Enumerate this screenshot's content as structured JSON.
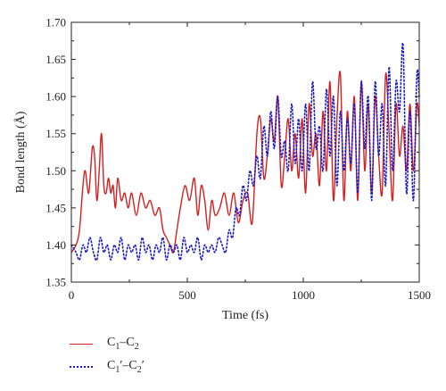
{
  "chart_data": {
    "type": "line",
    "xlabel": "Time (fs)",
    "ylabel": "Bond length (Å)",
    "xlim": [
      0,
      1500
    ],
    "ylim": [
      1.35,
      1.7
    ],
    "xticks": [
      0,
      500,
      1000,
      1500
    ],
    "yticks": [
      1.35,
      1.4,
      1.45,
      1.5,
      1.55,
      1.6,
      1.65,
      1.7
    ],
    "xtick_labels": [
      "0",
      "500",
      "1000",
      "1500"
    ],
    "ytick_labels": [
      "1.35",
      "1.40",
      "1.45",
      "1.50",
      "1.55",
      "1.60",
      "1.65",
      "1.70"
    ],
    "legend_position": "bottom-left, below plot",
    "series": [
      {
        "name": "C1–C2",
        "label_main": [
          "C",
          "–C",
          ""
        ],
        "label_subs": [
          "1",
          "2"
        ],
        "color": "#d42020",
        "style": "solid",
        "x": [
          0,
          20,
          35,
          50,
          60,
          75,
          90,
          100,
          110,
          120,
          130,
          140,
          150,
          160,
          170,
          180,
          190,
          200,
          215,
          230,
          245,
          260,
          280,
          300,
          320,
          340,
          360,
          380,
          395,
          410,
          425,
          440,
          455,
          470,
          490,
          510,
          530,
          545,
          560,
          575,
          590,
          605,
          620,
          640,
          660,
          680,
          700,
          720,
          740,
          760,
          780,
          800,
          815,
          830,
          845,
          860,
          875,
          890,
          905,
          920,
          935,
          950,
          965,
          980,
          995,
          1010,
          1025,
          1040,
          1055,
          1070,
          1085,
          1100,
          1115,
          1130,
          1145,
          1160,
          1175,
          1190,
          1205,
          1220,
          1235,
          1250,
          1265,
          1280,
          1295,
          1310,
          1325,
          1340,
          1355,
          1370,
          1385,
          1400,
          1415,
          1430,
          1445,
          1460,
          1475,
          1490,
          1500
        ],
        "y": [
          1.39,
          1.4,
          1.42,
          1.48,
          1.5,
          1.47,
          1.53,
          1.52,
          1.46,
          1.5,
          1.55,
          1.48,
          1.47,
          1.49,
          1.47,
          1.48,
          1.45,
          1.49,
          1.46,
          1.47,
          1.45,
          1.47,
          1.44,
          1.47,
          1.45,
          1.46,
          1.44,
          1.45,
          1.42,
          1.41,
          1.4,
          1.39,
          1.42,
          1.45,
          1.48,
          1.46,
          1.49,
          1.44,
          1.48,
          1.46,
          1.42,
          1.46,
          1.44,
          1.45,
          1.47,
          1.44,
          1.47,
          1.43,
          1.46,
          1.47,
          1.43,
          1.55,
          1.57,
          1.49,
          1.52,
          1.57,
          1.54,
          1.6,
          1.48,
          1.52,
          1.57,
          1.5,
          1.55,
          1.49,
          1.57,
          1.47,
          1.59,
          1.52,
          1.55,
          1.48,
          1.58,
          1.5,
          1.62,
          1.46,
          1.57,
          1.63,
          1.46,
          1.58,
          1.5,
          1.6,
          1.46,
          1.62,
          1.5,
          1.59,
          1.47,
          1.6,
          1.52,
          1.47,
          1.63,
          1.55,
          1.46,
          1.59,
          1.52,
          1.56,
          1.5,
          1.59,
          1.5,
          1.59,
          1.56
        ]
      },
      {
        "name": "C1′–C2′",
        "label_main": [
          "C",
          "′–C",
          "′"
        ],
        "label_subs": [
          "1",
          "2"
        ],
        "color": "#1a1acc",
        "style": "dotted",
        "x": [
          0,
          20,
          35,
          50,
          65,
          80,
          95,
          110,
          125,
          140,
          155,
          170,
          185,
          200,
          215,
          230,
          245,
          260,
          275,
          290,
          305,
          320,
          335,
          350,
          365,
          380,
          395,
          410,
          425,
          440,
          455,
          470,
          485,
          500,
          515,
          530,
          545,
          560,
          575,
          590,
          605,
          620,
          635,
          650,
          665,
          680,
          695,
          710,
          725,
          740,
          755,
          770,
          785,
          800,
          815,
          830,
          845,
          860,
          875,
          890,
          905,
          920,
          935,
          950,
          965,
          980,
          995,
          1010,
          1025,
          1040,
          1055,
          1070,
          1085,
          1100,
          1115,
          1130,
          1145,
          1160,
          1175,
          1190,
          1205,
          1220,
          1235,
          1250,
          1265,
          1280,
          1295,
          1310,
          1325,
          1340,
          1355,
          1370,
          1385,
          1400,
          1415,
          1430,
          1445,
          1460,
          1475,
          1490,
          1500
        ],
        "y": [
          1.4,
          1.39,
          1.38,
          1.4,
          1.39,
          1.41,
          1.39,
          1.38,
          1.41,
          1.39,
          1.4,
          1.38,
          1.4,
          1.39,
          1.41,
          1.38,
          1.4,
          1.39,
          1.4,
          1.38,
          1.41,
          1.39,
          1.4,
          1.38,
          1.4,
          1.39,
          1.41,
          1.38,
          1.4,
          1.39,
          1.4,
          1.38,
          1.41,
          1.39,
          1.4,
          1.39,
          1.41,
          1.38,
          1.4,
          1.39,
          1.4,
          1.39,
          1.41,
          1.4,
          1.39,
          1.42,
          1.41,
          1.45,
          1.44,
          1.48,
          1.46,
          1.5,
          1.48,
          1.52,
          1.49,
          1.56,
          1.52,
          1.58,
          1.53,
          1.6,
          1.52,
          1.54,
          1.5,
          1.59,
          1.51,
          1.57,
          1.5,
          1.59,
          1.5,
          1.62,
          1.53,
          1.56,
          1.5,
          1.61,
          1.52,
          1.6,
          1.48,
          1.58,
          1.5,
          1.57,
          1.51,
          1.59,
          1.47,
          1.62,
          1.53,
          1.6,
          1.46,
          1.62,
          1.52,
          1.59,
          1.48,
          1.64,
          1.5,
          1.62,
          1.58,
          1.67,
          1.47,
          1.58,
          1.46,
          1.63,
          1.6
        ]
      }
    ]
  }
}
